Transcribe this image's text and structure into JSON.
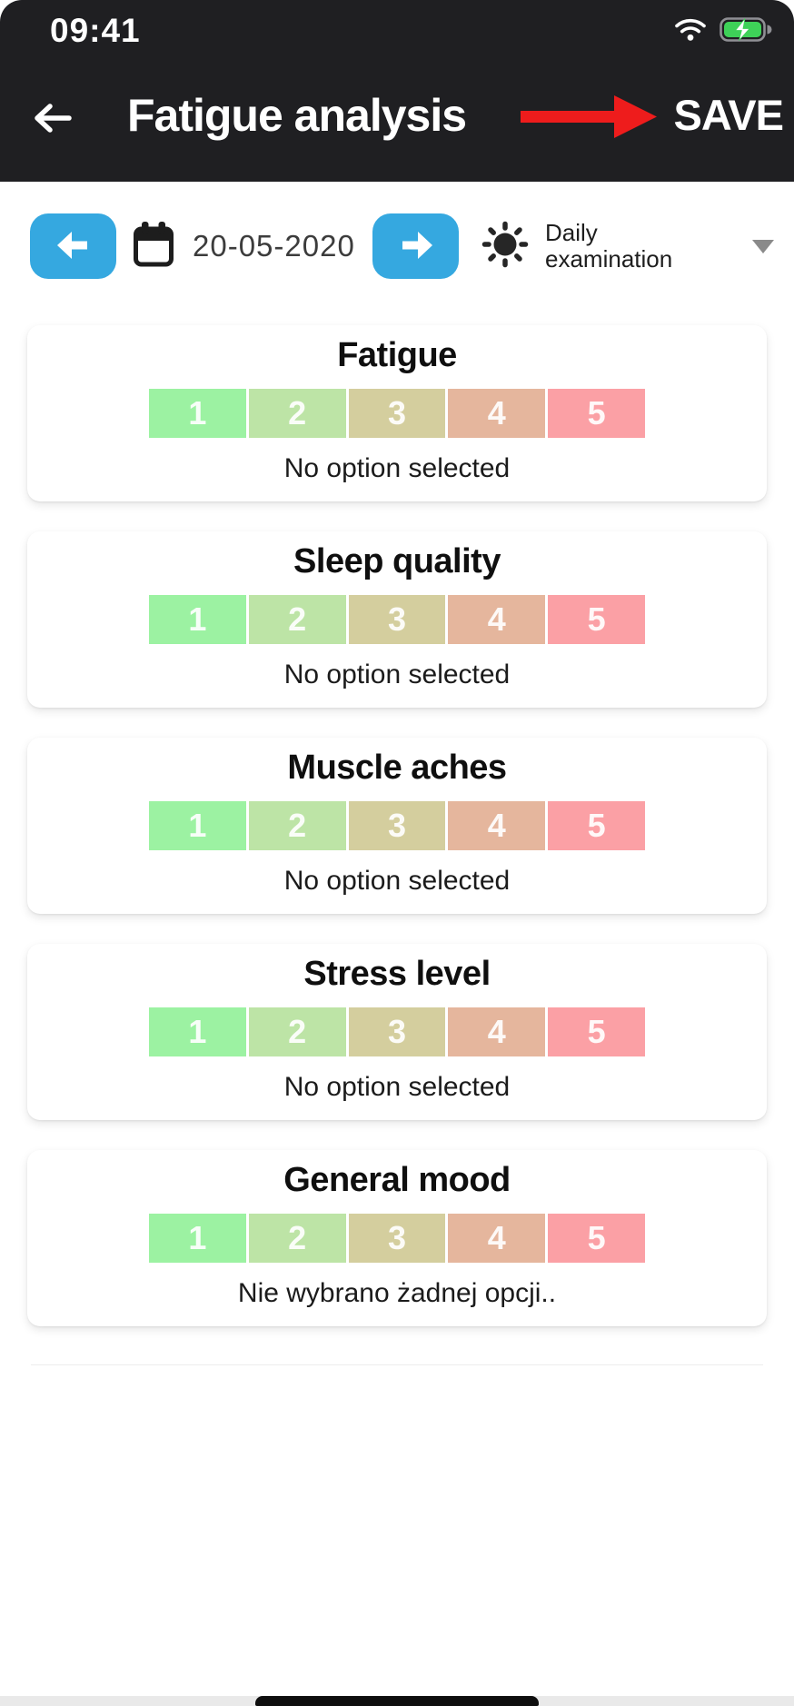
{
  "status_bar": {
    "time": "09:41",
    "wifi_icon": "wifi-icon",
    "battery_icon": "battery-charging-icon"
  },
  "header": {
    "title": "Fatigue analysis",
    "save_label": "SAVE",
    "back_icon": "arrow-left-icon",
    "annotation": "red-arrow-pointing-to-save"
  },
  "date_nav": {
    "date": "20-05-2020",
    "exam_type_line1": "Daily",
    "exam_type_line2": "examination",
    "prev_icon": "arrow-left-icon",
    "next_icon": "arrow-right-icon",
    "calendar_icon": "calendar-icon",
    "exam_icon": "sun-icon",
    "dropdown_icon": "chevron-down-icon"
  },
  "scale": {
    "labels": [
      "1",
      "2",
      "3",
      "4",
      "5"
    ],
    "colors": [
      "#9cf2a2",
      "#bde4a6",
      "#d4ce9e",
      "#e5b69d",
      "#fba0a5"
    ]
  },
  "cards": [
    {
      "title": "Fatigue",
      "status": "No option selected"
    },
    {
      "title": "Sleep quality",
      "status": "No option selected"
    },
    {
      "title": "Muscle aches",
      "status": "No option selected"
    },
    {
      "title": "Stress level",
      "status": "No option selected"
    },
    {
      "title": "General mood",
      "status": "Nie wybrano żadnej opcji.."
    }
  ],
  "colors": {
    "header_bg": "#1f1f22",
    "accent_blue": "#35a8e0",
    "annotation_red": "#ee1c1c",
    "battery_green": "#3ed158"
  }
}
